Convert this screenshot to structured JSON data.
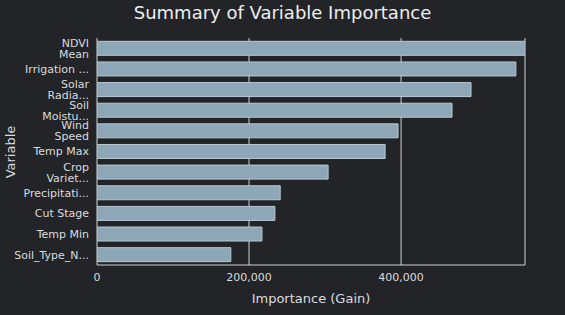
{
  "chart_data": {
    "type": "bar",
    "title": "Summary of Variable Importance",
    "orientation": "horizontal",
    "x_label": "Importance (Gain)",
    "y_label": "Variable",
    "categories": [
      "NDVI Mean",
      "Irrigation ...",
      "Solar Radia...",
      "Soil Moistu...",
      "Wind Speed",
      "Temp Max",
      "Crop Variet...",
      "Precipitati...",
      "Cut Stage",
      "Temp Min",
      "Soil_Type_N..."
    ],
    "values": [
      563000,
      551000,
      492000,
      467000,
      396000,
      379000,
      304000,
      241000,
      234000,
      217000,
      176000
    ],
    "color": "#8ea7b7",
    "xlim": [
      0,
      563000
    ],
    "xticks": [
      0,
      {
        "value": 200000,
        "label": "200,000"
      },
      {
        "value": 400000,
        "label": "400,000"
      }
    ],
    "grid": true
  }
}
